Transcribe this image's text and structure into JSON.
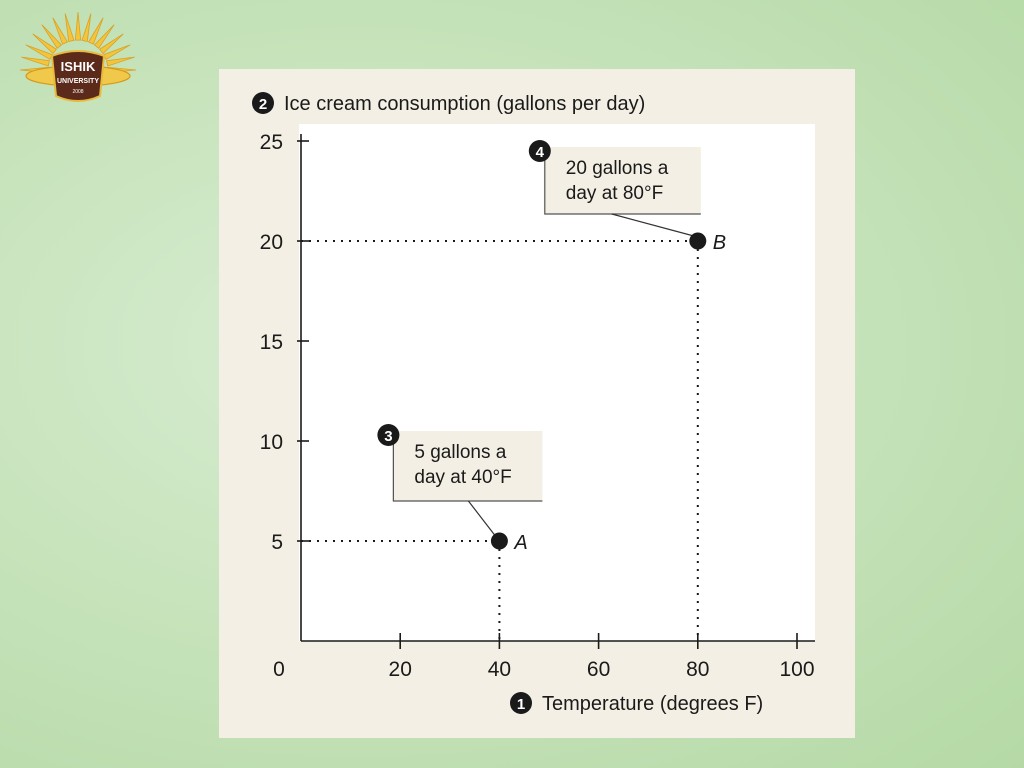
{
  "logo": {
    "name": "ISHIK",
    "subname": "UNIVERSITY",
    "year": "2008"
  },
  "chart_data": {
    "type": "scatter",
    "title": "Ice cream consumption (gallons per day)",
    "xlabel": "Temperature (degrees F)",
    "ylabel": "Ice cream consumption (gallons per day)",
    "xlim": [
      0,
      100
    ],
    "ylim": [
      0,
      25
    ],
    "x_ticks": [
      20,
      40,
      60,
      80,
      100
    ],
    "y_ticks": [
      5,
      10,
      15,
      20,
      25
    ],
    "origin_label": "0",
    "grid": false,
    "series": [
      {
        "points": [
          {
            "label": "A",
            "x": 40,
            "y": 5
          },
          {
            "label": "B",
            "x": 80,
            "y": 20
          }
        ]
      }
    ],
    "annotations": [
      {
        "marker": "1",
        "target": "x-axis-label"
      },
      {
        "marker": "2",
        "target": "y-axis-label"
      },
      {
        "marker": "3",
        "point": "A",
        "lines": [
          "5 gallons a",
          "day at 40°F"
        ]
      },
      {
        "marker": "4",
        "point": "B",
        "lines": [
          "20 gallons a",
          "day at 80°F"
        ]
      }
    ],
    "colors": {
      "panel": "#f3efe4",
      "plot": "#ffffff",
      "ink": "#1a1a1a",
      "callout": "#f3efe4"
    }
  }
}
